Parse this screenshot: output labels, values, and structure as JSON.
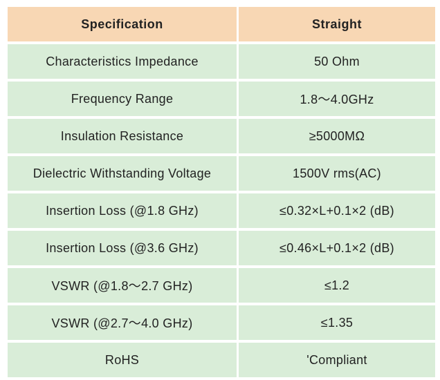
{
  "header": {
    "specification": "Specification",
    "straight": "Straight"
  },
  "rows": [
    {
      "spec": "Characteristics Impedance",
      "value": "50 Ohm"
    },
    {
      "spec": "Frequency Range",
      "value": "1.8～4.0GHz"
    },
    {
      "spec": "Insulation Resistance",
      "value": "≥5000MΩ"
    },
    {
      "spec": "Dielectric Withstanding Voltage",
      "value": "1500V rms(AC)"
    },
    {
      "spec": "Insertion Loss  (@1.8 GHz)",
      "value": "≤0.32×L+0.1×2 (dB)"
    },
    {
      "spec": "Insertion Loss  (@3.6 GHz)",
      "value": "≤0.46×L+0.1×2 (dB)"
    },
    {
      "spec": "VSWR  (@1.8～2.7 GHz)",
      "value": "≤1.2"
    },
    {
      "spec": "VSWR  (@2.7～4.0 GHz)",
      "value": "≤1.35"
    },
    {
      "spec": "RoHS",
      "value": "'Compliant"
    }
  ],
  "colors": {
    "header_bg": "#f8d7b4",
    "row_bg": "#d9edd8",
    "text": "#222222"
  }
}
